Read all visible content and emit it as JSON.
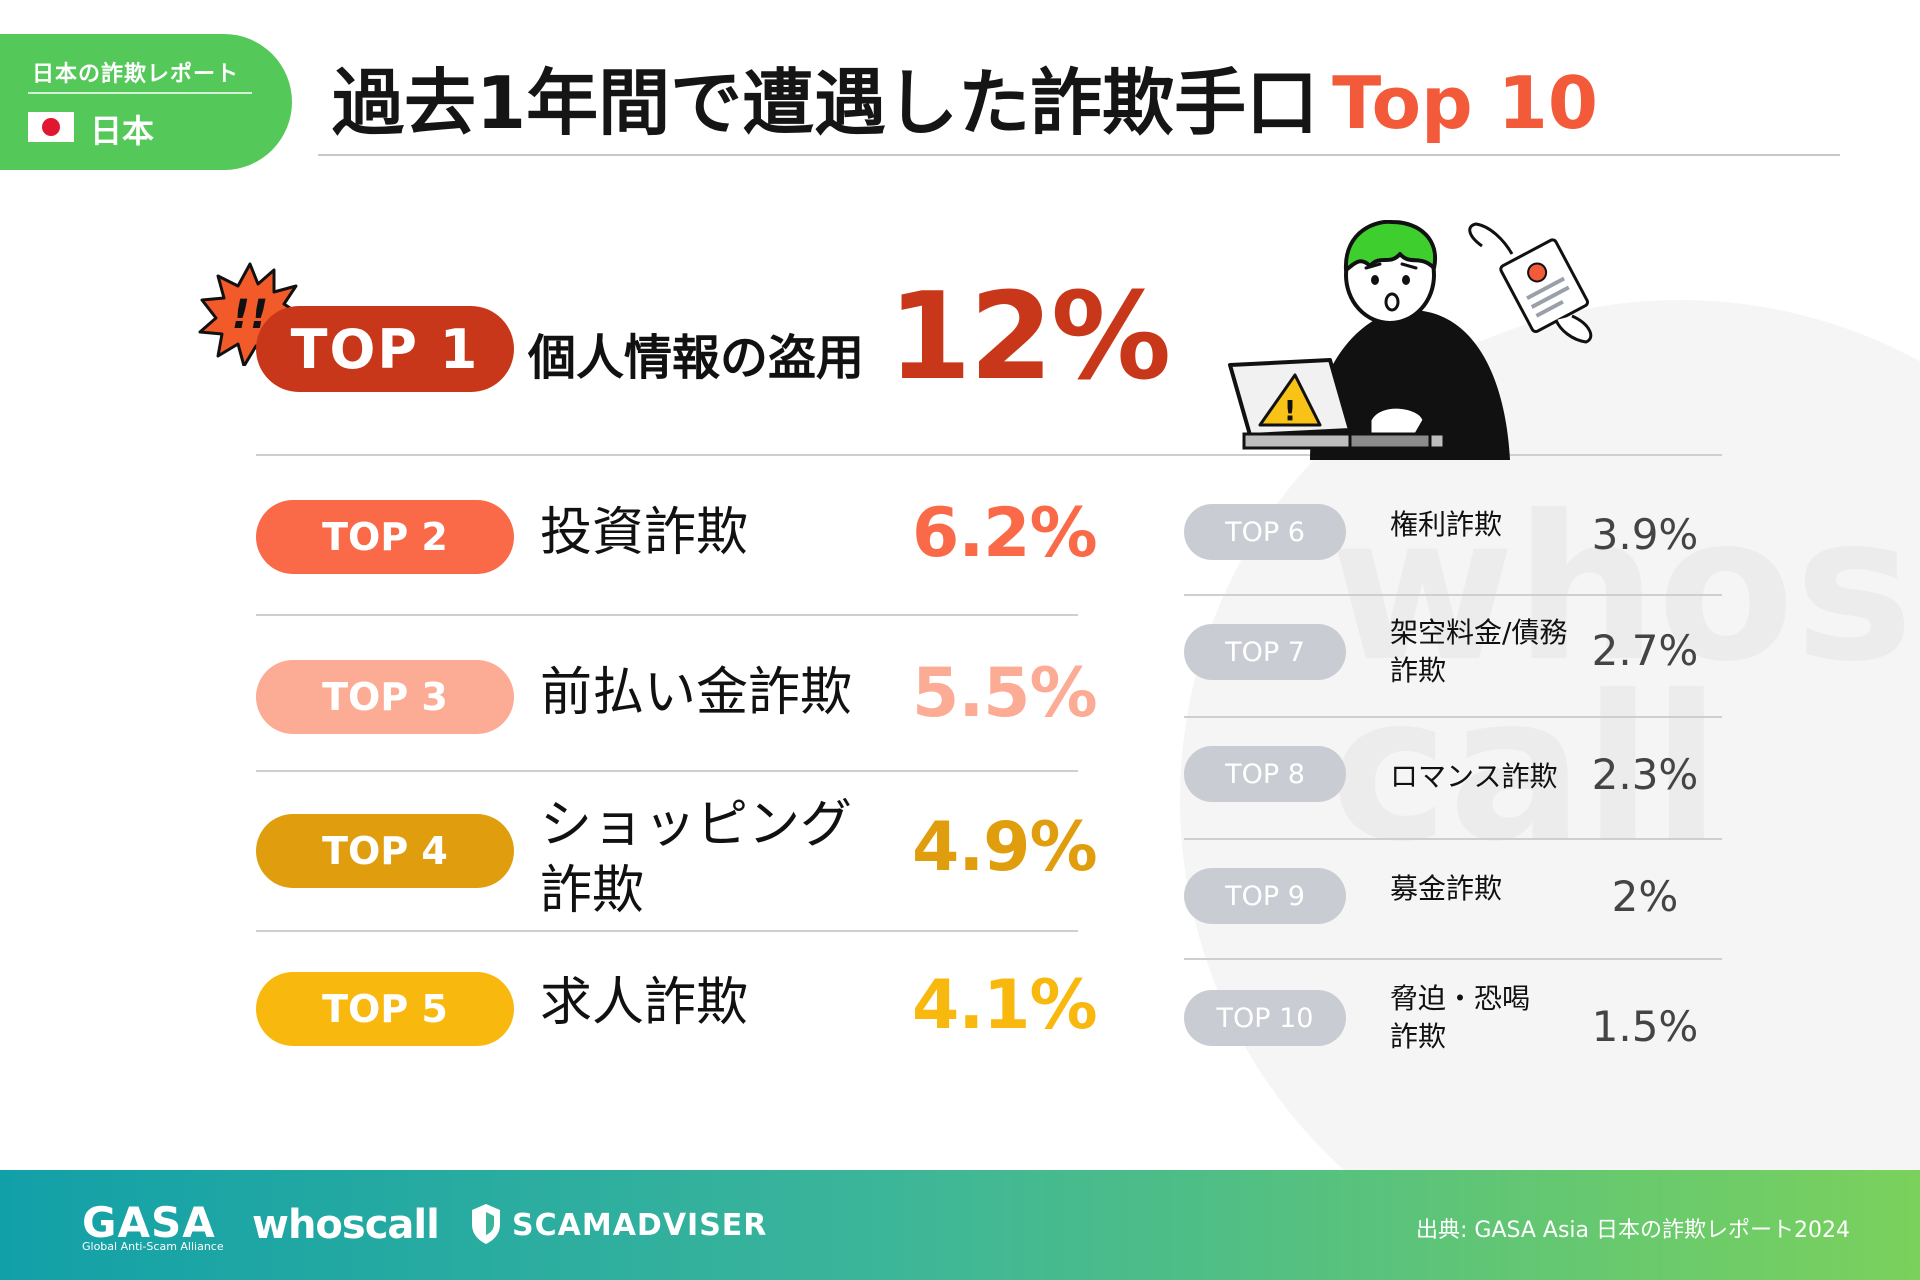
{
  "header": {
    "report_label": "日本の詐欺レポート",
    "country": "日本",
    "title": "過去1年間で遭遇した詐欺手口",
    "title_accent": "Top 10"
  },
  "top1": {
    "exclamation": "!!",
    "rank": "TOP 1",
    "label": "個人情報の盗用",
    "value": "12%",
    "color": "#c9371a"
  },
  "left_items": [
    {
      "rank": "TOP 2",
      "label": "投資詐欺",
      "value": "6.2%",
      "color": "#fb6a48"
    },
    {
      "rank": "TOP 3",
      "label": "前払い金詐欺",
      "value": "5.5%",
      "color": "#fcab94"
    },
    {
      "rank": "TOP 4",
      "label_line1": "ショッピング",
      "label_line2": "詐欺",
      "value": "4.9%",
      "color": "#e09e0e"
    },
    {
      "rank": "TOP 5",
      "label": "求人詐欺",
      "value": "4.1%",
      "color": "#f8b80e"
    }
  ],
  "right_items": [
    {
      "rank": "TOP 6",
      "label": "権利詐欺",
      "value": "3.9%"
    },
    {
      "rank": "TOP 7",
      "label_line1": "架空料金/債務",
      "label_line2": "詐欺",
      "value": "2.7%"
    },
    {
      "rank": "TOP 8",
      "label": "ロマンス詐欺",
      "value": "2.3%"
    },
    {
      "rank": "TOP 9",
      "label": "募金詐欺",
      "value": "2%"
    },
    {
      "rank": "TOP 10",
      "label_line1": "脅迫・恐喝",
      "label_line2": "詐欺",
      "value": "1.5%"
    }
  ],
  "colors": {
    "brand_green": "#55c85a",
    "title_accent": "#f25a3a",
    "minor_pill": "#c9ccd2"
  },
  "background_watermark": "whos call",
  "footer": {
    "logo_gasa": "GASA",
    "logo_gasa_sub": "Global Anti-Scam Alliance",
    "logo_whoscall": "whoscall",
    "logo_scamadviser": "SCAMADVISER",
    "source": "出典: GASA Asia 日本の詐欺レポート2024"
  }
}
